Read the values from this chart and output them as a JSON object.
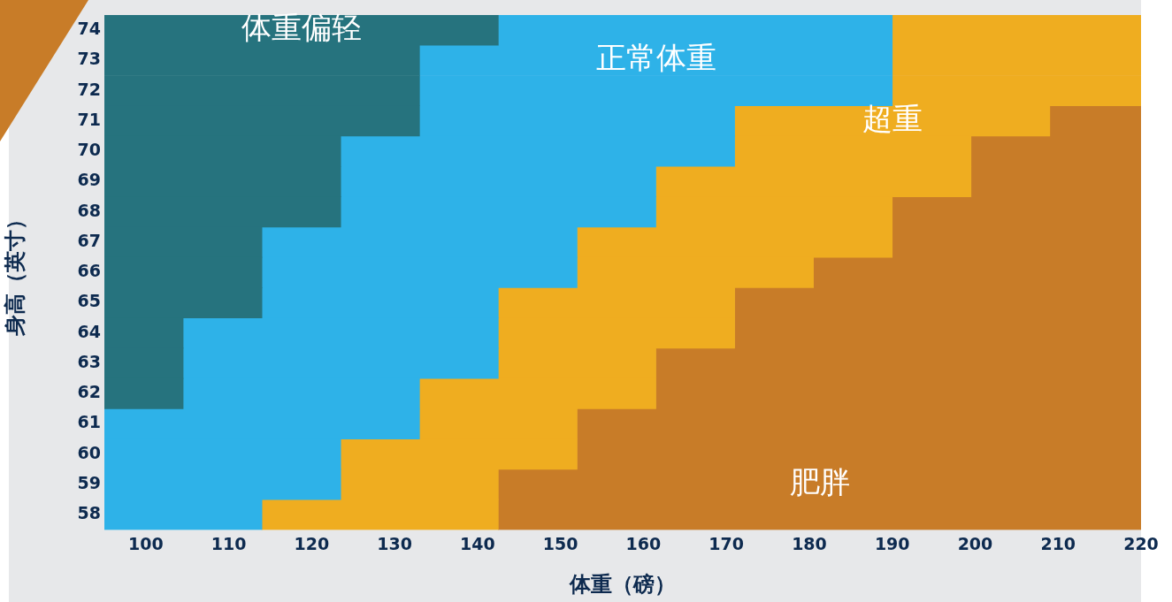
{
  "chart_data": {
    "type": "bar",
    "orientation": "horizontal",
    "xlabel": "体重（磅）",
    "ylabel": "身高（英寸）",
    "categories": [
      "74",
      "73",
      "72",
      "71",
      "70",
      "69",
      "68",
      "67",
      "66",
      "65",
      "64",
      "63",
      "62",
      "61",
      "60",
      "59",
      "58"
    ],
    "xlim": [
      95,
      220
    ],
    "xticks": [
      100,
      110,
      120,
      130,
      140,
      150,
      160,
      170,
      180,
      190,
      200,
      210,
      220
    ],
    "grid": false,
    "legend": false,
    "series": [
      {
        "name": "体重偏轻",
        "color": "#26737e",
        "base": [
          95,
          95,
          95,
          95,
          95,
          95,
          95,
          95,
          95,
          95,
          95,
          95,
          95,
          null,
          null,
          null,
          null
        ],
        "values": [
          47.5,
          38,
          38,
          38,
          28.5,
          28.5,
          28.5,
          19,
          19,
          19,
          9.5,
          9.5,
          9.5,
          null,
          null,
          null,
          null
        ]
      },
      {
        "name": "正常体重",
        "color": "#2eb2e8",
        "base": [
          142.5,
          133,
          133,
          133,
          123.5,
          123.5,
          123.5,
          114,
          114,
          114,
          104.5,
          104.5,
          104.5,
          95,
          95,
          95,
          95
        ],
        "values": [
          47.5,
          57,
          57,
          38,
          47.5,
          38,
          38,
          38,
          38,
          28.5,
          38,
          38,
          28.5,
          38,
          28.5,
          28.5,
          19
        ]
      },
      {
        "name": "超重",
        "color": "#efad20",
        "base": [
          190,
          190,
          190,
          171,
          171,
          161.5,
          161.5,
          152,
          152,
          142.5,
          142.5,
          142.5,
          133,
          133,
          123.5,
          123.5,
          114
        ],
        "values": [
          30,
          30,
          30,
          38,
          28.5,
          38,
          28.5,
          38,
          28.5,
          28.5,
          28.5,
          19,
          28.5,
          19,
          28.5,
          19,
          28.5
        ]
      },
      {
        "name": "肥胖",
        "color": "#c87c28",
        "base": [
          null,
          null,
          null,
          209,
          199.5,
          199.5,
          190,
          190,
          180.5,
          171,
          171,
          161.5,
          161.5,
          152,
          152,
          142.5,
          142.5
        ],
        "values": [
          null,
          null,
          null,
          11,
          20.5,
          20.5,
          30,
          30,
          39.5,
          49,
          49,
          58.5,
          58.5,
          68,
          68,
          77.5,
          77.5
        ]
      }
    ]
  }
}
